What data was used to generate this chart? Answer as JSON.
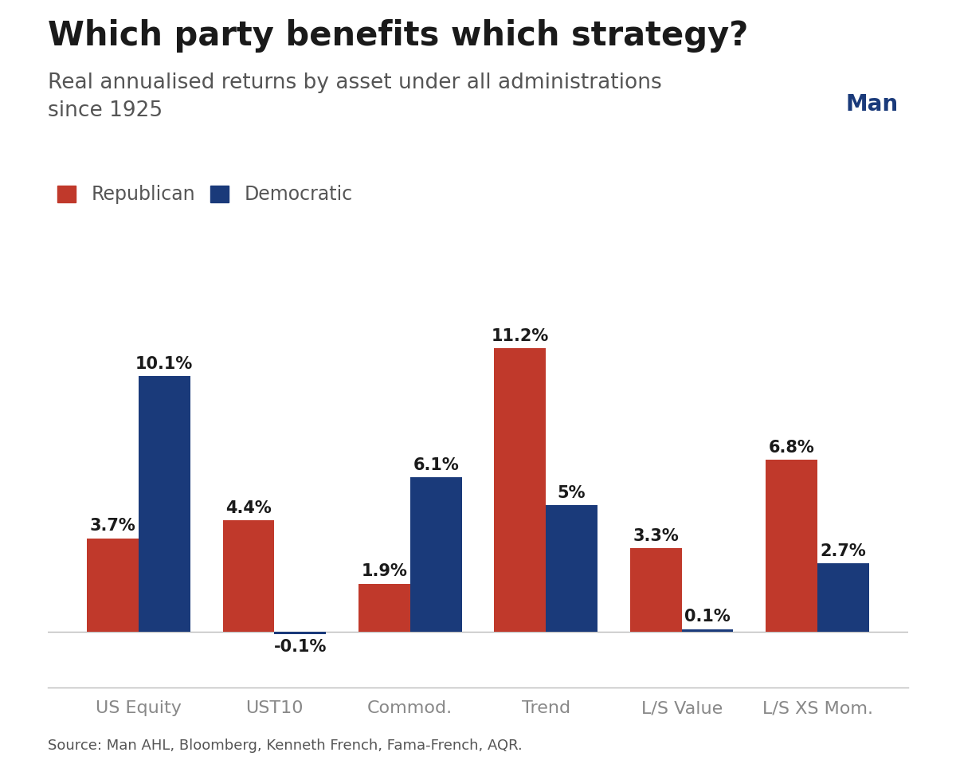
{
  "title": "Which party benefits which strategy?",
  "subtitle": "Real annualised returns by asset under all administrations\nsince 1925",
  "source": "Source: Man AHL, Bloomberg, Kenneth French, Fama-French, AQR.",
  "categories": [
    "US Equity",
    "UST10",
    "Commod.",
    "Trend",
    "L/S Value",
    "L/S XS Mom."
  ],
  "republican_values": [
    3.7,
    4.4,
    1.9,
    11.2,
    3.3,
    6.8
  ],
  "democratic_values": [
    10.1,
    -0.1,
    6.1,
    5.0,
    0.1,
    2.7
  ],
  "republican_labels": [
    "3.7%",
    "4.4%",
    "1.9%",
    "11.2%",
    "3.3%",
    "6.8%"
  ],
  "democratic_labels": [
    "10.1%",
    "-0.1%",
    "6.1%",
    "5%",
    "0.1%",
    "2.7%"
  ],
  "republican_color": "#C0392B",
  "democratic_color": "#1A3A7A",
  "republican_label": "Republican",
  "democratic_label": "Democratic",
  "bar_width": 0.38,
  "background_color": "#FFFFFF",
  "title_color": "#1a1a1a",
  "text_color": "#555555",
  "tick_color": "#888888",
  "title_fontsize": 30,
  "subtitle_fontsize": 19,
  "legend_fontsize": 17,
  "bar_label_fontsize": 15,
  "tick_fontsize": 16,
  "source_fontsize": 13,
  "ylim": [
    -2.2,
    13.5
  ],
  "logo_color": "#1A3A7A"
}
